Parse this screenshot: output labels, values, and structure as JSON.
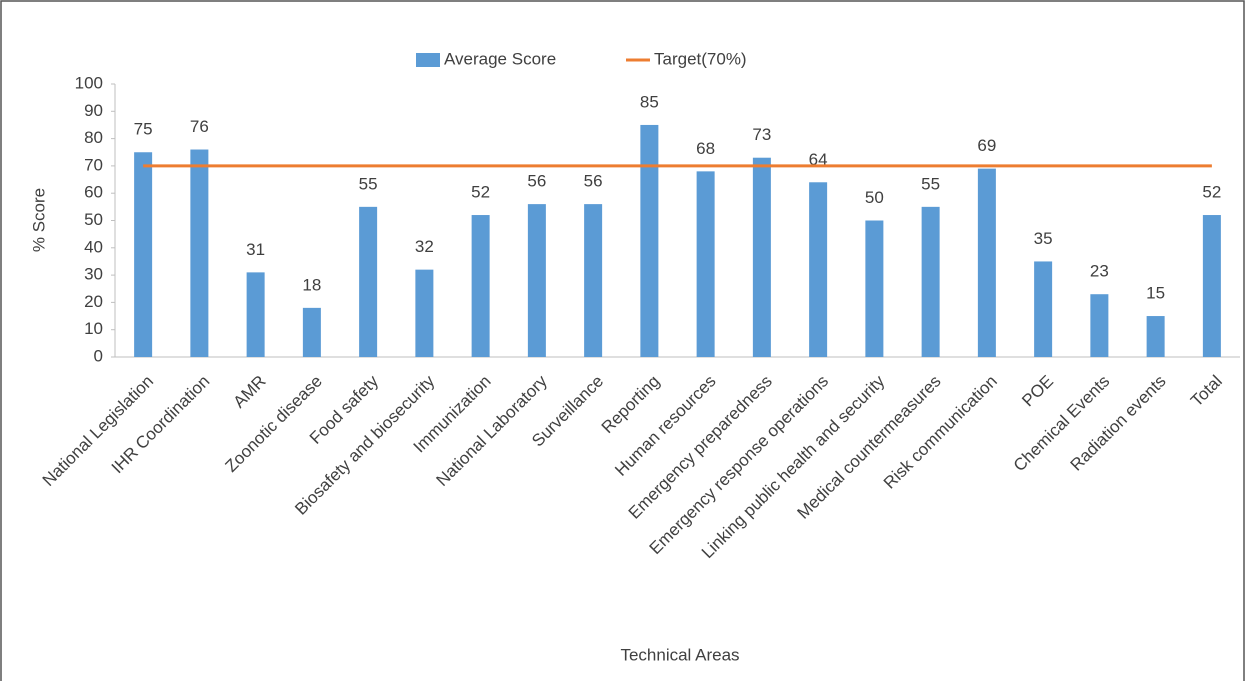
{
  "chart_data": {
    "type": "bar",
    "x_label": "Technical Areas",
    "y_label": "% Score",
    "categories": [
      "National Legislation",
      "IHR Coordination",
      "AMR",
      "Zoonotic disease",
      "Food safety",
      "Biosafety and biosecurity",
      "Immunization",
      "National Laboratory",
      "Surveillance",
      "Reporting",
      "Human resources",
      "Emergency preparedness",
      "Emergency response operations",
      "Linking public health and security",
      "Medical countermeasures",
      "Risk communication",
      "POE",
      "Chemical Events",
      "Radiation events",
      "Total"
    ],
    "series": [
      {
        "name": "Average Score",
        "type": "bar",
        "color": "#5b9bd5",
        "values": [
          75,
          76,
          31,
          18,
          55,
          32,
          52,
          56,
          56,
          85,
          68,
          73,
          64,
          50,
          55,
          69,
          35,
          23,
          15,
          52
        ]
      },
      {
        "name": "Target(70%)",
        "type": "line",
        "color": "#ed7d31",
        "values": [
          70,
          70,
          70,
          70,
          70,
          70,
          70,
          70,
          70,
          70,
          70,
          70,
          70,
          70,
          70,
          70,
          70,
          70,
          70,
          70
        ]
      }
    ],
    "ylim": [
      0,
      100
    ],
    "yticks": [
      0,
      10,
      20,
      30,
      40,
      50,
      60,
      70,
      80,
      90,
      100
    ],
    "grid": false,
    "legend": "top"
  }
}
